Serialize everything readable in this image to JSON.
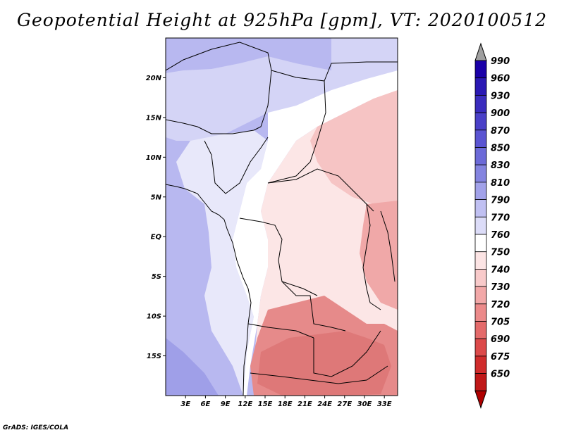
{
  "title": "Geopotential Height at 925hPa [gpm], VT: 2020100512",
  "credit": "GrADS: IGES/COLA",
  "axes": {
    "x_ticks": [
      "3E",
      "6E",
      "9E",
      "12E",
      "15E",
      "18E",
      "21E",
      "24E",
      "27E",
      "30E",
      "33E"
    ],
    "x_values": [
      3,
      6,
      9,
      12,
      15,
      18,
      21,
      24,
      27,
      30,
      33
    ],
    "y_ticks": [
      "20N",
      "15N",
      "10N",
      "5N",
      "EQ",
      "5S",
      "10S",
      "15S"
    ],
    "y_values": [
      20,
      15,
      10,
      5,
      0,
      -5,
      -10,
      -15
    ],
    "lon_range": [
      0,
      35
    ],
    "lat_range": [
      -20,
      25
    ]
  },
  "colorbar": {
    "labels": [
      "990",
      "960",
      "930",
      "900",
      "870",
      "850",
      "830",
      "810",
      "790",
      "770",
      "760",
      "750",
      "740",
      "730",
      "720",
      "705",
      "690",
      "675",
      "650"
    ],
    "colors": [
      "#1a00a8",
      "#2a18b4",
      "#3a2cbe",
      "#4a40c8",
      "#5a54d2",
      "#6c6ad8",
      "#8484e0",
      "#a2a2ea",
      "#c0c0f2",
      "#dcdcf8",
      "#ffffff",
      "#fce4e4",
      "#f8caca",
      "#f2a8a8",
      "#ec8a8a",
      "#e46a6a",
      "#dc4a4a",
      "#d02c2c",
      "#c01818"
    ],
    "top_arrow_color": "#a0a0a0",
    "bottom_arrow_color": "#b00000"
  },
  "map_colors": {
    "ocean_deep": "#9f9fe8",
    "ocean": "#b8b8f0",
    "land_blue": "#d4d4f6",
    "land_pale": "#e8e8fa",
    "white": "#ffffff",
    "pink_pale": "#fce6e6",
    "pink": "#f6c4c4",
    "pink_mid": "#f0a8a8",
    "red": "#e68a8a",
    "red_deep": "#de7878",
    "border": "#000000"
  }
}
